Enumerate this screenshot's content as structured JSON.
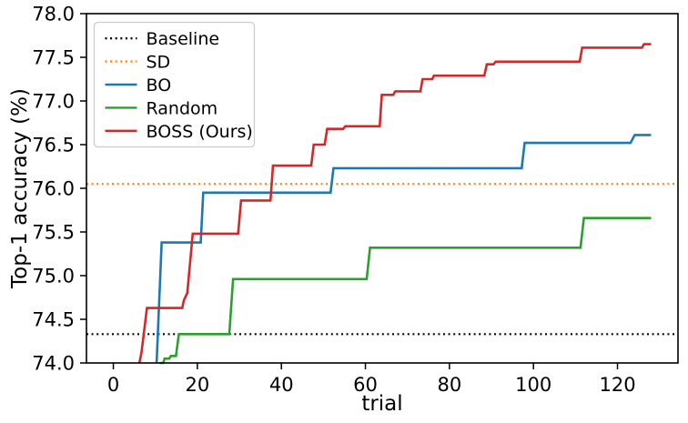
{
  "chart_data": {
    "type": "line",
    "subtype": "step-optimization-curves",
    "xlabel": "trial",
    "ylabel": "Top-1 accuracy (%)",
    "xlim": [
      -6.4,
      134.4
    ],
    "ylim": [
      74.0,
      78.0
    ],
    "x_ticks": [
      0,
      20,
      40,
      60,
      80,
      100,
      120
    ],
    "y_ticks": [
      74.0,
      74.5,
      75.0,
      75.5,
      76.0,
      76.5,
      77.0,
      77.5,
      78.0
    ],
    "grid": false,
    "legend_position": "upper left",
    "hlines": [
      {
        "name": "Baseline",
        "value": 74.33,
        "color": "#000000",
        "style": "dotted"
      },
      {
        "name": "SD",
        "value": 76.05,
        "color": "#ff7f0e",
        "style": "dotted"
      }
    ],
    "series": [
      {
        "name": "BO",
        "color": "#1f77b4",
        "style": "solid",
        "points": [
          [
            10.3,
            74.0
          ],
          [
            11.5,
            75.38
          ],
          [
            20.8,
            75.38
          ],
          [
            21.4,
            75.95
          ],
          [
            51.7,
            75.95
          ],
          [
            52.4,
            76.23
          ],
          [
            97.2,
            76.23
          ],
          [
            97.9,
            76.52
          ],
          [
            123.1,
            76.52
          ],
          [
            124.1,
            76.61
          ],
          [
            128.0,
            76.61
          ]
        ]
      },
      {
        "name": "Random",
        "color": "#2ca02c",
        "style": "solid",
        "points": [
          [
            11.0,
            74.0
          ],
          [
            11.9,
            74.0
          ],
          [
            12.2,
            74.05
          ],
          [
            13.3,
            74.05
          ],
          [
            13.7,
            74.08
          ],
          [
            14.9,
            74.08
          ],
          [
            15.6,
            74.33
          ],
          [
            27.6,
            74.33
          ],
          [
            28.5,
            74.96
          ],
          [
            60.3,
            74.96
          ],
          [
            61.1,
            75.32
          ],
          [
            111.2,
            75.32
          ],
          [
            112.0,
            75.66
          ],
          [
            128.0,
            75.66
          ]
        ]
      },
      {
        "name": "BOSS (Ours)",
        "color": "#d62728",
        "style": "solid",
        "points": [
          [
            6.2,
            74.0
          ],
          [
            6.7,
            74.12
          ],
          [
            8.0,
            74.63
          ],
          [
            16.4,
            74.63
          ],
          [
            16.8,
            74.72
          ],
          [
            17.6,
            74.8
          ],
          [
            18.9,
            75.48
          ],
          [
            29.7,
            75.48
          ],
          [
            30.4,
            75.86
          ],
          [
            37.4,
            75.86
          ],
          [
            38.0,
            76.26
          ],
          [
            47.1,
            76.26
          ],
          [
            47.7,
            76.5
          ],
          [
            50.3,
            76.5
          ],
          [
            50.9,
            76.68
          ],
          [
            54.7,
            76.68
          ],
          [
            55.2,
            76.71
          ],
          [
            63.4,
            76.71
          ],
          [
            63.9,
            77.07
          ],
          [
            66.6,
            77.07
          ],
          [
            67.1,
            77.11
          ],
          [
            73.1,
            77.11
          ],
          [
            73.6,
            77.25
          ],
          [
            75.9,
            77.25
          ],
          [
            76.3,
            77.29
          ],
          [
            88.3,
            77.29
          ],
          [
            88.9,
            77.42
          ],
          [
            90.5,
            77.42
          ],
          [
            91.0,
            77.45
          ],
          [
            111.0,
            77.45
          ],
          [
            111.6,
            77.61
          ],
          [
            125.8,
            77.61
          ],
          [
            126.3,
            77.65
          ],
          [
            128.0,
            77.65
          ]
        ]
      }
    ],
    "legend": [
      {
        "label": "Baseline",
        "color": "#000000",
        "style": "dotted"
      },
      {
        "label": "SD",
        "color": "#ff7f0e",
        "style": "dotted"
      },
      {
        "label": "BO",
        "color": "#1f77b4",
        "style": "solid"
      },
      {
        "label": "Random",
        "color": "#2ca02c",
        "style": "solid"
      },
      {
        "label": "BOSS (Ours)",
        "color": "#d62728",
        "style": "solid"
      }
    ],
    "final_values": {
      "BO": 76.61,
      "Random": 75.66,
      "BOSS (Ours)": 77.65,
      "Baseline": 74.33,
      "SD": 76.05
    }
  }
}
